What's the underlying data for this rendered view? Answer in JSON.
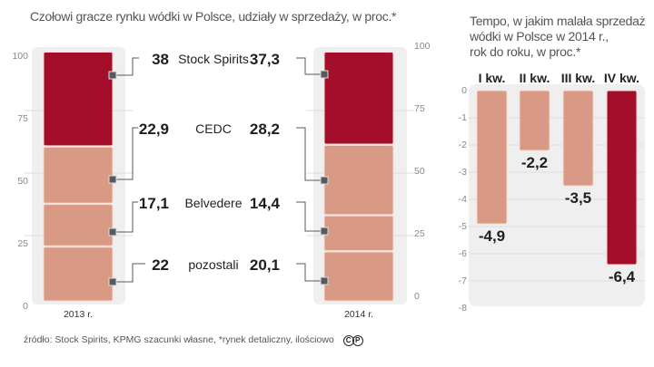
{
  "left_title": "Czołowi gracze rynku wódki w Polsce, udziały w sprzedaży, w proc.*",
  "right_title_lines": [
    "Tempo, w jakim malała sprzedaż",
    "wódki w Polsce w 2014 r.,",
    "rok do roku, w proc.*"
  ],
  "footer": {
    "text": "źródło: Stock Spirits, KPMG szacunki własne,  *rynek detaliczny, ilościowo",
    "logo_c": "C",
    "logo_p": "P"
  },
  "colors": {
    "dark": "#a50e2a",
    "light": "#d89a84",
    "panel": "#efefef",
    "grid": "#dcdcdc",
    "connector": "#555a60"
  },
  "chart_data": [
    {
      "type": "bar",
      "stacked": true,
      "title": "Czołowi gracze rynku wódki w Polsce, udziały w sprzedaży, w proc.*",
      "categories": [
        "2013 r.",
        "2014 r."
      ],
      "series": [
        {
          "name": "pozostali",
          "values": [
            22,
            20.1
          ],
          "labels": [
            "22",
            "20,1"
          ],
          "color": "light"
        },
        {
          "name": "Belvedere",
          "values": [
            17.1,
            14.4
          ],
          "labels": [
            "17,1",
            "14,4"
          ],
          "color": "light"
        },
        {
          "name": "CEDC",
          "values": [
            22.9,
            28.2
          ],
          "labels": [
            "22,9",
            "28,2"
          ],
          "color": "light"
        },
        {
          "name": "Stock Spirits",
          "values": [
            38,
            37.3
          ],
          "labels": [
            "38",
            "37,3"
          ],
          "color": "dark"
        }
      ],
      "yticks": [
        "0",
        "25",
        "50",
        "75",
        "100"
      ],
      "ytick_values": [
        0,
        25,
        50,
        75,
        100
      ],
      "ylim": [
        0,
        100
      ],
      "grid": true
    },
    {
      "type": "bar",
      "title": "Tempo, w jakim malała sprzedaż wódki w Polsce w 2014 r., rok do roku, w proc.*",
      "categories": [
        "I kw.",
        "II kw.",
        "III kw.",
        "IV kw."
      ],
      "values": [
        -4.9,
        -2.2,
        -3.5,
        -6.4
      ],
      "labels": [
        "-4,9",
        "-2,2",
        "-3,5",
        "-6,4"
      ],
      "highlight": [
        false,
        false,
        false,
        true
      ],
      "yticks": [
        "0",
        "-1",
        "-2",
        "-3",
        "-4",
        "-5",
        "-6",
        "-7",
        "-8"
      ],
      "ytick_values": [
        0,
        -1,
        -2,
        -3,
        -4,
        -5,
        -6,
        -7,
        -8
      ],
      "ylim": [
        -8,
        0
      ],
      "grid": true
    }
  ]
}
